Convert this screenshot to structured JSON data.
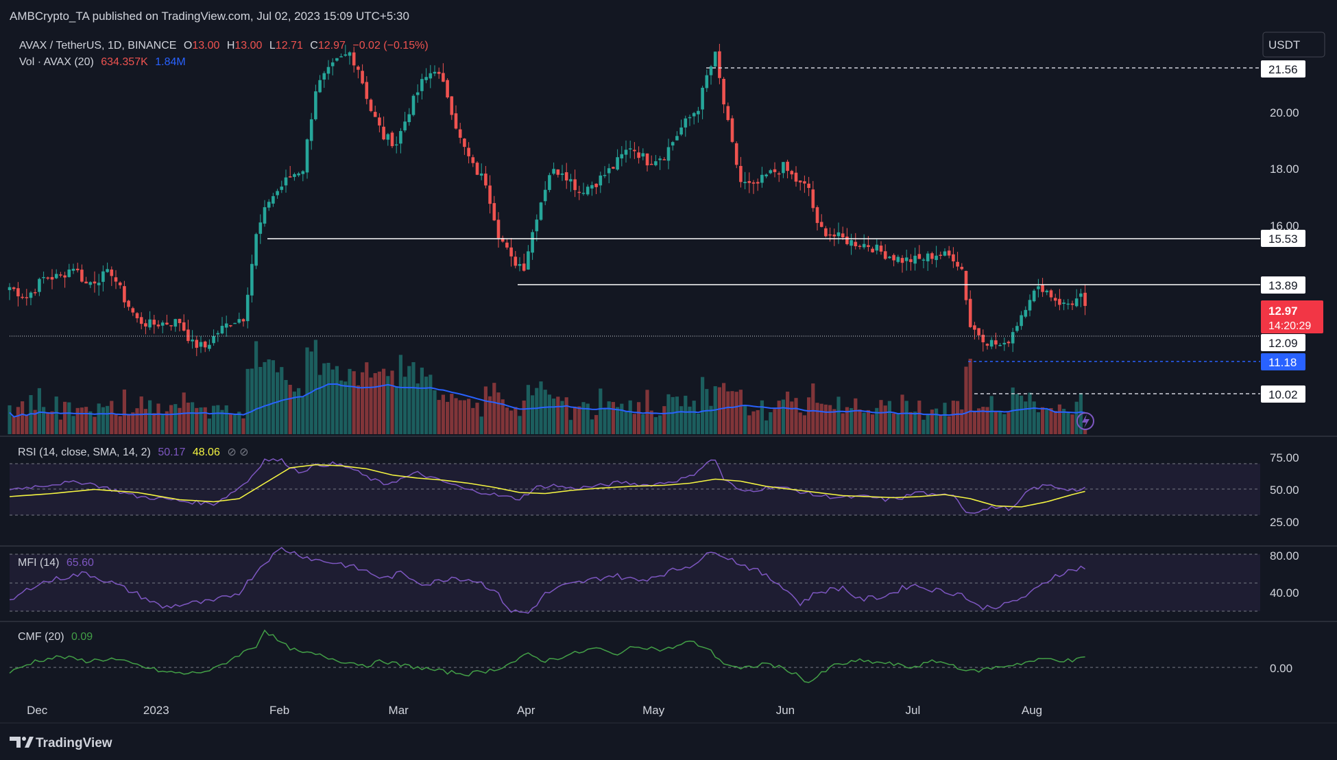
{
  "header": {
    "publisher": "AMBCrypto_TA published on TradingView.com, Jul 02, 2023 15:09 UTC+5:30",
    "symbol": "AVAX / TetherUS, 1D, BINANCE",
    "o_label": "O",
    "o_value": "13.00",
    "h_label": "H",
    "h_value": "13.00",
    "l_label": "L",
    "l_value": "12.71",
    "c_label": "C",
    "c_value": "12.97",
    "change": "−0.02 (−0.15%)",
    "vol_label": "Vol · AVAX (20)",
    "vol_value": "634.357K",
    "vol_ma_value": "1.84M"
  },
  "currency_button": "USDT",
  "footer": {
    "brand": "TradingView"
  },
  "colors": {
    "background": "#131722",
    "up": "#26a69a",
    "down": "#ef5350",
    "volume_ma": "#2962ff",
    "rsi": "#7e57c2",
    "rsi_ma": "#f5f542",
    "mfi": "#7e57c2",
    "cmf": "#43a047",
    "text": "#d1d4dc"
  },
  "price_labels": {
    "level_2156": "21.56",
    "level_1553": "15.53",
    "level_1389": "13.89",
    "last_price": "12.97",
    "countdown": "14:20:29",
    "level_1209": "12.09",
    "level_1118": "11.18",
    "level_1002": "10.02"
  },
  "chart_data": [
    {
      "type": "candlestick",
      "title": "AVAX / TetherUS, 1D, BINANCE",
      "y_axis": {
        "min": 9.2,
        "max": 21.7,
        "ticks": [
          20.0,
          18.0,
          16.0
        ]
      },
      "x_axis_labels": [
        "Dec",
        "2023",
        "Feb",
        "Mar",
        "Apr",
        "May",
        "Jun",
        "Jul",
        "Aug"
      ],
      "close_series": [
        [
          0,
          13.6
        ],
        [
          4,
          13.25
        ],
        [
          8,
          13.9
        ],
        [
          12,
          13.95
        ],
        [
          15,
          14.3
        ],
        [
          18,
          13.7
        ],
        [
          21,
          13.9
        ],
        [
          24,
          14.1
        ],
        [
          27,
          13.2
        ],
        [
          30,
          12.5
        ],
        [
          33,
          12.35
        ],
        [
          36,
          12.4
        ],
        [
          40,
          12.45
        ],
        [
          43,
          11.7
        ],
        [
          46,
          11.6
        ],
        [
          49,
          12.1
        ],
        [
          52,
          12.45
        ],
        [
          55,
          12.6
        ],
        [
          58,
          15.3
        ],
        [
          61,
          16.5
        ],
        [
          63,
          16.8
        ],
        [
          66,
          17.3
        ],
        [
          69,
          17.55
        ],
        [
          72,
          20.2
        ],
        [
          74,
          20.6
        ],
        [
          77,
          21.1
        ],
        [
          80,
          21.4
        ],
        [
          82,
          20.9
        ],
        [
          85,
          19.5
        ],
        [
          88,
          18.6
        ],
        [
          91,
          18.4
        ],
        [
          94,
          19.5
        ],
        [
          97,
          20.4
        ],
        [
          100,
          20.9
        ],
        [
          103,
          20.0
        ],
        [
          106,
          18.5
        ],
        [
          109,
          17.6
        ],
        [
          112,
          17.1
        ],
        [
          115,
          15.4
        ],
        [
          118,
          14.5
        ],
        [
          121,
          14.3
        ],
        [
          124,
          16.0
        ],
        [
          127,
          17.4
        ],
        [
          130,
          17.5
        ],
        [
          134,
          16.8
        ],
        [
          138,
          17.1
        ],
        [
          142,
          17.6
        ],
        [
          146,
          18.3
        ],
        [
          150,
          17.8
        ],
        [
          154,
          18.0
        ],
        [
          158,
          18.9
        ],
        [
          162,
          19.6
        ],
        [
          164,
          20.6
        ],
        [
          166,
          21.3
        ],
        [
          168,
          19.7
        ],
        [
          170,
          18.3
        ],
        [
          172,
          17.1
        ],
        [
          175,
          16.9
        ],
        [
          178,
          17.3
        ],
        [
          182,
          17.6
        ],
        [
          186,
          17.0
        ],
        [
          188,
          16.9
        ],
        [
          190,
          15.6
        ],
        [
          194,
          15.3
        ],
        [
          198,
          15.1
        ],
        [
          202,
          15.0
        ],
        [
          206,
          14.7
        ],
        [
          210,
          14.5
        ],
        [
          214,
          14.5
        ],
        [
          218,
          14.7
        ],
        [
          222,
          14.6
        ],
        [
          224,
          14.2
        ],
        [
          226,
          12.3
        ],
        [
          230,
          11.8
        ],
        [
          234,
          11.6
        ],
        [
          237,
          12.4
        ],
        [
          240,
          13.3
        ],
        [
          243,
          13.6
        ],
        [
          246,
          13.2
        ],
        [
          248,
          13.0
        ],
        [
          250,
          13.1
        ],
        [
          252,
          13.25
        ],
        [
          253,
          12.97
        ]
      ],
      "horizontal_levels": [
        21.56,
        15.53,
        13.89,
        12.09,
        11.18,
        10.02
      ],
      "last_close": 12.97
    },
    {
      "type": "area",
      "title": "Vol · AVAX (20)",
      "value": "634.357K",
      "ma_value": "1.84M"
    },
    {
      "type": "line",
      "title": "RSI (14, close, SMA, 14, 2)",
      "rsi_value": "50.17",
      "sma_value": "48.06",
      "y_ticks": [
        "75.00",
        "50.00",
        "25.00"
      ],
      "y_range": [
        0,
        100
      ],
      "band": [
        30,
        70
      ],
      "rsi_series": [
        [
          0,
          50
        ],
        [
          6,
          53
        ],
        [
          12,
          56
        ],
        [
          18,
          57
        ],
        [
          24,
          50
        ],
        [
          30,
          43
        ],
        [
          36,
          41
        ],
        [
          42,
          38
        ],
        [
          48,
          36
        ],
        [
          52,
          46
        ],
        [
          56,
          58
        ],
        [
          60,
          79
        ],
        [
          64,
          78
        ],
        [
          68,
          67
        ],
        [
          72,
          73
        ],
        [
          76,
          75
        ],
        [
          80,
          71
        ],
        [
          84,
          62
        ],
        [
          88,
          55
        ],
        [
          92,
          60
        ],
        [
          96,
          66
        ],
        [
          100,
          60
        ],
        [
          104,
          55
        ],
        [
          108,
          49
        ],
        [
          112,
          47
        ],
        [
          116,
          43
        ],
        [
          120,
          41
        ],
        [
          124,
          52
        ],
        [
          128,
          54
        ],
        [
          132,
          51
        ],
        [
          138,
          53
        ],
        [
          144,
          57
        ],
        [
          150,
          54
        ],
        [
          156,
          58
        ],
        [
          160,
          62
        ],
        [
          164,
          76
        ],
        [
          166,
          79
        ],
        [
          168,
          60
        ],
        [
          172,
          48
        ],
        [
          176,
          50
        ],
        [
          180,
          53
        ],
        [
          186,
          48
        ],
        [
          190,
          44
        ],
        [
          196,
          42
        ],
        [
          202,
          43
        ],
        [
          206,
          40
        ],
        [
          210,
          42
        ],
        [
          214,
          48
        ],
        [
          218,
          43
        ],
        [
          222,
          46
        ],
        [
          225,
          28
        ],
        [
          228,
          29
        ],
        [
          232,
          33
        ],
        [
          236,
          31
        ],
        [
          240,
          50
        ],
        [
          244,
          54
        ],
        [
          248,
          51
        ],
        [
          252,
          49
        ],
        [
          253,
          50.17
        ]
      ],
      "sma_series": [
        [
          0,
          43
        ],
        [
          10,
          46
        ],
        [
          20,
          50
        ],
        [
          30,
          47
        ],
        [
          40,
          40
        ],
        [
          48,
          38
        ],
        [
          54,
          41
        ],
        [
          60,
          56
        ],
        [
          66,
          71
        ],
        [
          72,
          74
        ],
        [
          78,
          73
        ],
        [
          84,
          70
        ],
        [
          90,
          64
        ],
        [
          96,
          61
        ],
        [
          102,
          59
        ],
        [
          108,
          56
        ],
        [
          114,
          52
        ],
        [
          120,
          47
        ],
        [
          126,
          46
        ],
        [
          132,
          49
        ],
        [
          138,
          51
        ],
        [
          146,
          53
        ],
        [
          154,
          54
        ],
        [
          160,
          56
        ],
        [
          166,
          60
        ],
        [
          172,
          58
        ],
        [
          178,
          53
        ],
        [
          184,
          50
        ],
        [
          190,
          47
        ],
        [
          196,
          44
        ],
        [
          202,
          43
        ],
        [
          208,
          42
        ],
        [
          214,
          43
        ],
        [
          220,
          45
        ],
        [
          226,
          41
        ],
        [
          232,
          34
        ],
        [
          238,
          33
        ],
        [
          244,
          38
        ],
        [
          250,
          45
        ],
        [
          253,
          48.06
        ]
      ]
    },
    {
      "type": "line",
      "title": "MFI (14)",
      "mfi_value": "65.60",
      "y_ticks": [
        "80.00",
        "40.00"
      ],
      "y_range": [
        0,
        100
      ],
      "band": [
        20,
        80
      ],
      "mfi_series": [
        [
          0,
          30
        ],
        [
          6,
          48
        ],
        [
          12,
          55
        ],
        [
          18,
          60
        ],
        [
          24,
          50
        ],
        [
          30,
          38
        ],
        [
          36,
          24
        ],
        [
          42,
          28
        ],
        [
          48,
          30
        ],
        [
          54,
          40
        ],
        [
          60,
          72
        ],
        [
          64,
          86
        ],
        [
          68,
          80
        ],
        [
          72,
          74
        ],
        [
          78,
          70
        ],
        [
          84,
          62
        ],
        [
          88,
          54
        ],
        [
          92,
          60
        ],
        [
          98,
          48
        ],
        [
          104,
          56
        ],
        [
          110,
          52
        ],
        [
          114,
          42
        ],
        [
          118,
          20
        ],
        [
          122,
          18
        ],
        [
          126,
          38
        ],
        [
          130,
          46
        ],
        [
          136,
          52
        ],
        [
          142,
          58
        ],
        [
          148,
          52
        ],
        [
          154,
          60
        ],
        [
          160,
          68
        ],
        [
          166,
          84
        ],
        [
          170,
          74
        ],
        [
          176,
          62
        ],
        [
          182,
          46
        ],
        [
          186,
          28
        ],
        [
          190,
          40
        ],
        [
          196,
          45
        ],
        [
          200,
          32
        ],
        [
          206,
          36
        ],
        [
          212,
          48
        ],
        [
          218,
          42
        ],
        [
          224,
          38
        ],
        [
          228,
          24
        ],
        [
          234,
          26
        ],
        [
          240,
          38
        ],
        [
          246,
          58
        ],
        [
          252,
          66
        ],
        [
          253,
          65.6
        ]
      ]
    },
    {
      "type": "line",
      "title": "CMF (20)",
      "cmf_value": "0.09",
      "y_ticks": [
        "0.00"
      ],
      "y_range": [
        -0.3,
        0.4
      ],
      "zero_line": 0,
      "cmf_series": [
        [
          0,
          -0.05
        ],
        [
          6,
          0.06
        ],
        [
          12,
          0.1
        ],
        [
          18,
          0.06
        ],
        [
          24,
          0.08
        ],
        [
          30,
          0.02
        ],
        [
          36,
          -0.04
        ],
        [
          42,
          -0.06
        ],
        [
          48,
          -0.02
        ],
        [
          54,
          0.12
        ],
        [
          58,
          0.2
        ],
        [
          60,
          0.35
        ],
        [
          64,
          0.22
        ],
        [
          68,
          0.14
        ],
        [
          72,
          0.12
        ],
        [
          78,
          0.06
        ],
        [
          84,
          0.02
        ],
        [
          88,
          0.06
        ],
        [
          92,
          0.02
        ],
        [
          96,
          0.0
        ],
        [
          102,
          -0.04
        ],
        [
          108,
          -0.06
        ],
        [
          114,
          -0.02
        ],
        [
          118,
          0.04
        ],
        [
          122,
          0.12
        ],
        [
          126,
          0.06
        ],
        [
          132,
          0.12
        ],
        [
          138,
          0.18
        ],
        [
          142,
          0.12
        ],
        [
          148,
          0.2
        ],
        [
          154,
          0.16
        ],
        [
          160,
          0.24
        ],
        [
          164,
          0.18
        ],
        [
          168,
          0.04
        ],
        [
          172,
          -0.02
        ],
        [
          178,
          0.04
        ],
        [
          184,
          -0.04
        ],
        [
          188,
          -0.14
        ],
        [
          194,
          0.02
        ],
        [
          200,
          0.06
        ],
        [
          206,
          0.04
        ],
        [
          212,
          0.0
        ],
        [
          218,
          0.06
        ],
        [
          222,
          0.02
        ],
        [
          226,
          -0.04
        ],
        [
          232,
          0.0
        ],
        [
          238,
          0.04
        ],
        [
          244,
          0.08
        ],
        [
          250,
          0.06
        ],
        [
          253,
          0.09
        ]
      ]
    }
  ]
}
